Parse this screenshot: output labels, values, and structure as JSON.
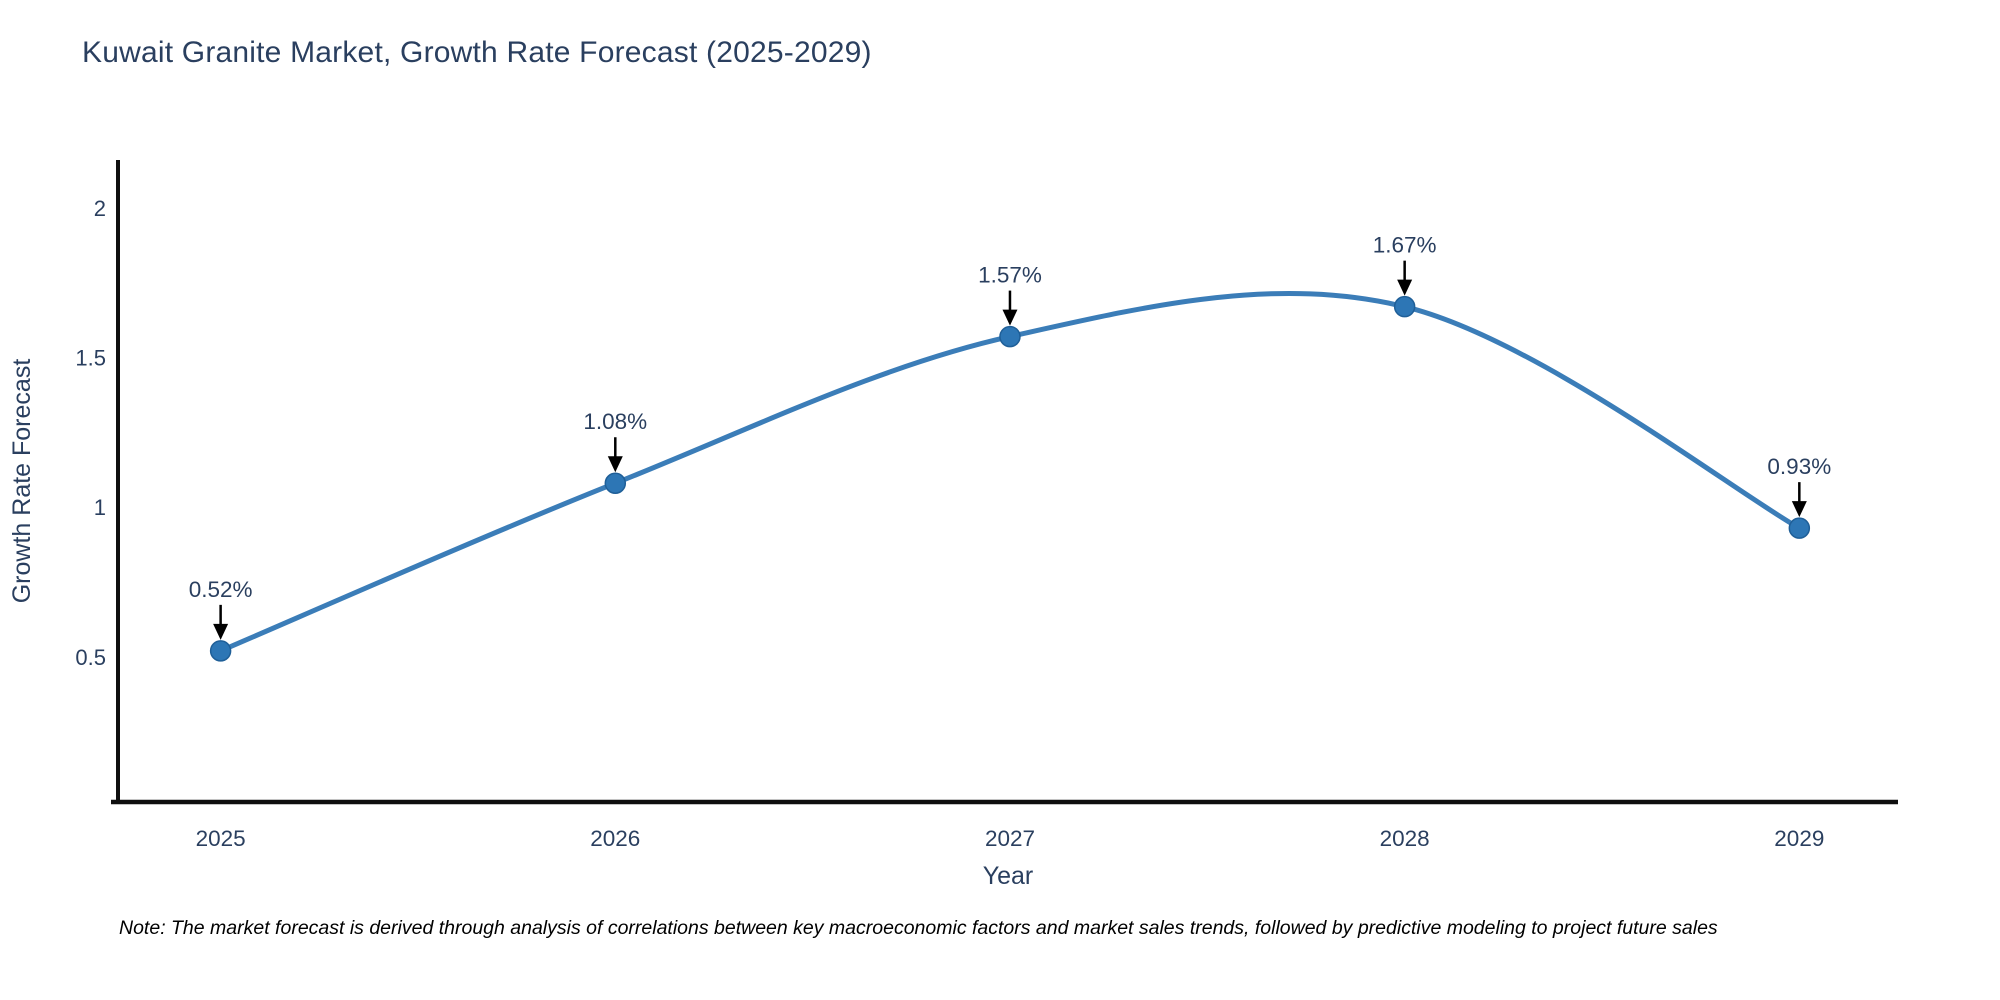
{
  "title": "Kuwait Granite Market, Growth Rate Forecast (2025-2029)",
  "footnote": {
    "text": "Note: The market forecast is derived through analysis of correlations between key macroeconomic factors and market sales trends, followed by predictive modeling to project future sales"
  },
  "chart_data": {
    "type": "line",
    "title": "Kuwait Granite Market, Growth Rate Forecast (2025-2029)",
    "xlabel": "Year",
    "ylabel": "Growth Rate Forecast",
    "x": [
      2025,
      2026,
      2027,
      2028,
      2029
    ],
    "values": [
      0.52,
      1.08,
      1.57,
      1.67,
      0.93
    ],
    "point_labels": [
      "0.52%",
      "1.08%",
      "1.57%",
      "1.67%",
      "0.93%"
    ],
    "xtick_labels": [
      "2025",
      "2026",
      "2027",
      "2028",
      "2029"
    ],
    "yticks": [
      0.5,
      1,
      1.5,
      2
    ],
    "ytick_labels": [
      "0.5",
      "1",
      "1.5",
      "2"
    ],
    "xlim": [
      2024.74,
      2029.25
    ],
    "ylim": [
      0.015,
      2.16
    ],
    "line_shape": "spline",
    "grid": false,
    "legend": "none",
    "colors": {
      "line": "#3b7db8",
      "marker": "#2d76b5",
      "marker_edge": "#1f5f98",
      "axis": "#0f0f0f",
      "text": "#2a3f5f",
      "annotation_arrow": "#000000",
      "background": "#ffffff"
    }
  }
}
